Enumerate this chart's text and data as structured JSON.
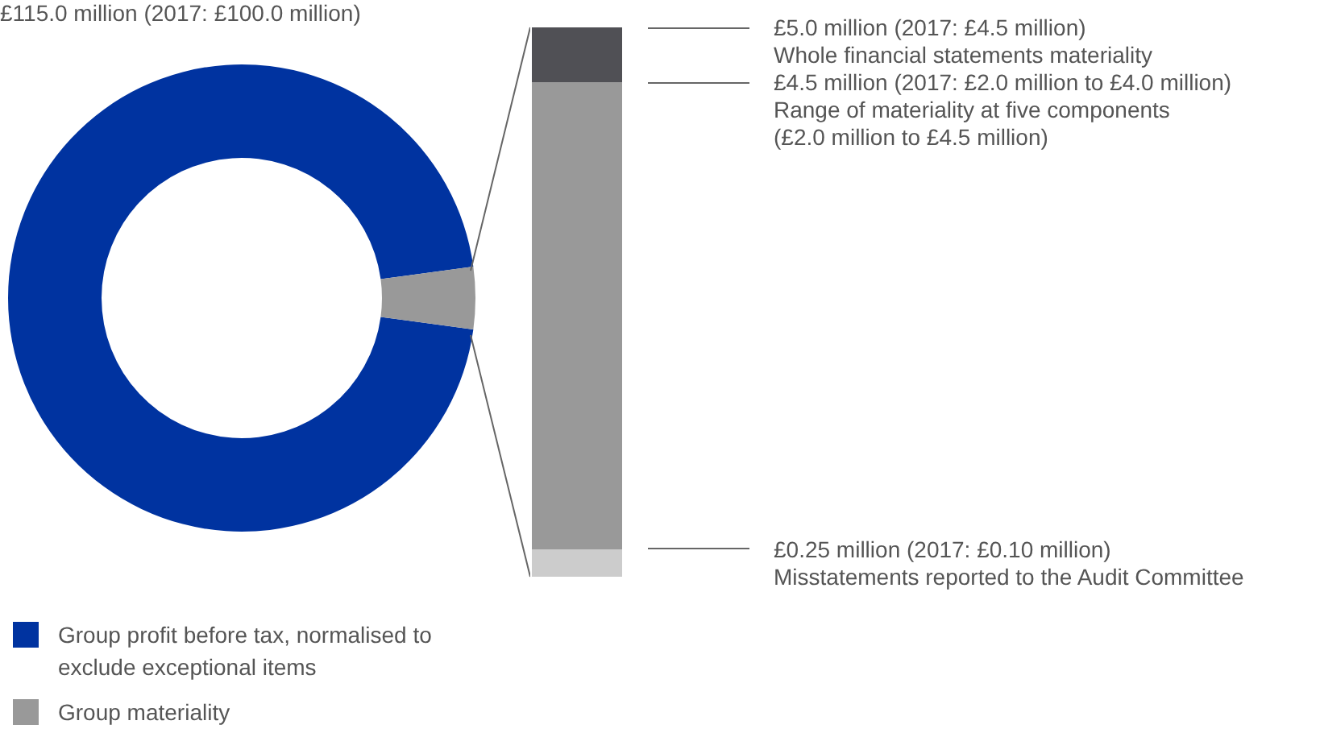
{
  "chart_data": [
    {
      "type": "donut",
      "title": "£115.0 million (2017: £100.0 million)",
      "categories": [
        "Group profit before tax, normalised to exclude exceptional items",
        "Group materiality"
      ],
      "values": [
        95.7,
        4.3
      ],
      "colors": [
        "#0033a0",
        "#999999"
      ],
      "legend": "bottom left"
    },
    {
      "type": "other",
      "annotations": [
        "£5.0 million (2017: £4.5 million)\nWhole financial statements materiality",
        "£4.5 million (2017: £2.0 million to £4.0 million)\nRange of materiality at five components\n(£2.0 million to £4.5 million)",
        "£0.25 million (2017: £0.10 million)\nMisstatements reported to the Audit Committee"
      ]
    }
  ]
}
